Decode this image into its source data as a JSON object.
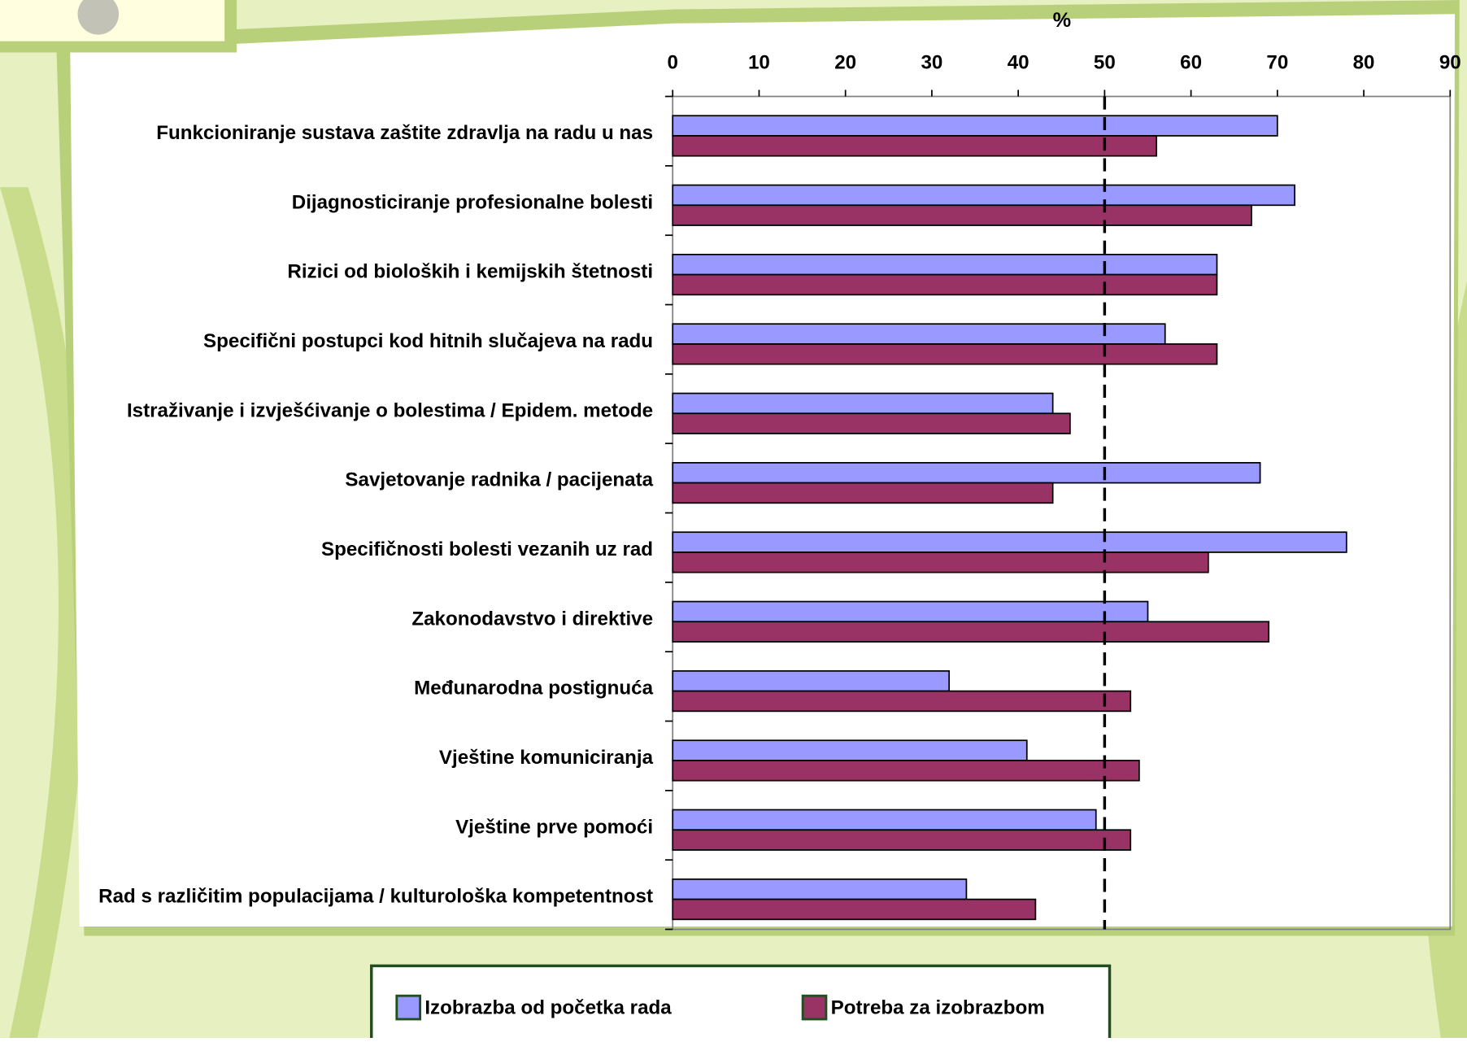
{
  "chart_data": {
    "type": "bar",
    "orientation": "horizontal",
    "x_label": "%",
    "categories": [
      "Funkcioniranje sustava zaštite zdravlja na radu u nas",
      "Dijagnosticiranje profesionalne bolesti",
      "Rizici od bioloških i kemijskih štetnosti",
      "Specifični postupci kod hitnih slučajeva na radu",
      "Istraživanje i izvješćivanje o bolestima / Epidem. metode",
      "Savjetovanje radnika / pacijenata",
      "Specifičnosti bolesti vezanih uz rad",
      "Zakonodavstvo i direktive",
      "Međunarodna postignuća",
      "Vještine komuniciranja",
      "Vještine prve pomoći",
      "Rad s različitim populacijama / kulturološka kompetentnost"
    ],
    "series": [
      {
        "name": "Izobrazba od početka rada",
        "color": "#9999ff",
        "values": [
          70,
          72,
          63,
          57,
          44,
          68,
          78,
          55,
          32,
          41,
          49,
          34
        ]
      },
      {
        "name": "Potreba za izobrazbom",
        "color": "#993366",
        "values": [
          56,
          67,
          63,
          63,
          46,
          44,
          62,
          69,
          53,
          54,
          53,
          42
        ]
      }
    ],
    "xlim": [
      0,
      90
    ],
    "xticks": [
      0,
      10,
      20,
      30,
      40,
      50,
      60,
      70,
      80,
      90
    ],
    "reference_line": 50,
    "legend": "bottom"
  }
}
